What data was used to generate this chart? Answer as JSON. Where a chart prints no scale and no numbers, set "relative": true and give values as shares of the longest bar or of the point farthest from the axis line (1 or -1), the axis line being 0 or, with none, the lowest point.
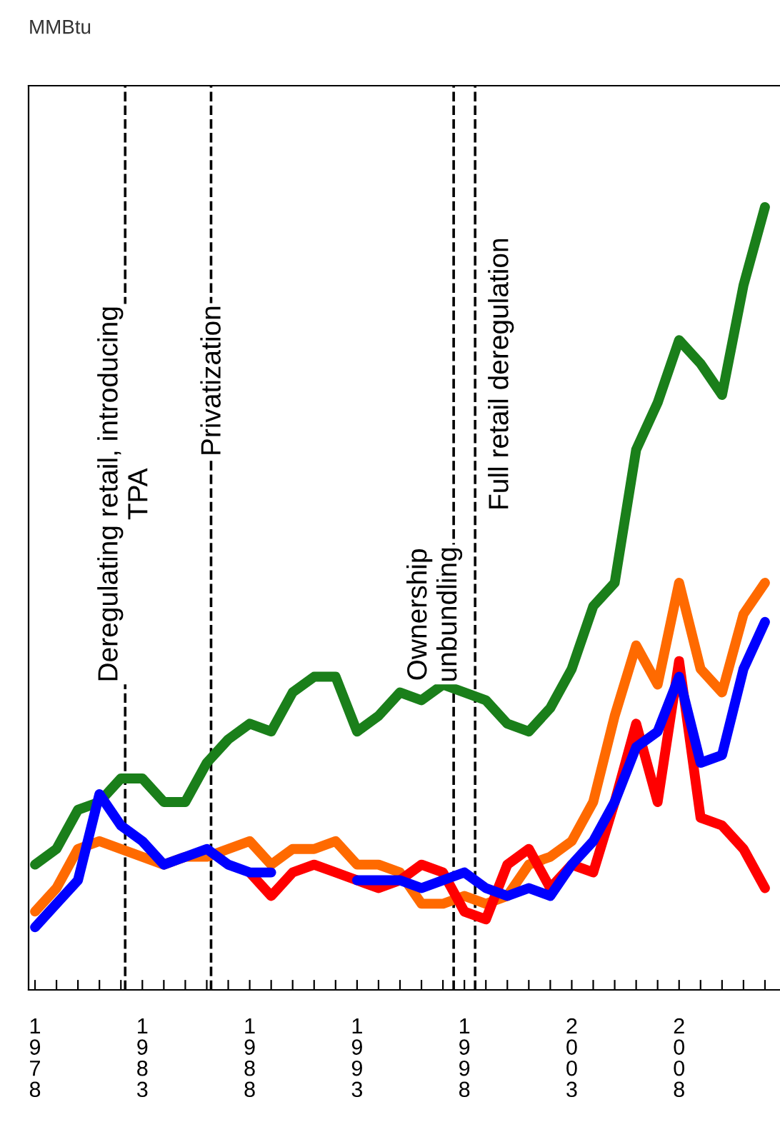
{
  "chart_data": {
    "type": "line",
    "relative": true,
    "annotations": [
      "MMBtu"
    ],
    "grid": false,
    "legend": false,
    "marker": "none",
    "line_style": "solid",
    "x": [
      1978,
      1979,
      1980,
      1981,
      1982,
      1983,
      1984,
      1985,
      1986,
      1987,
      1988,
      1989,
      1990,
      1991,
      1992,
      1993,
      1994,
      1995,
      1996,
      1997,
      1998,
      1999,
      2000,
      2001,
      2002,
      2003,
      2004,
      2005,
      2006,
      2007,
      2008,
      2009,
      2010,
      2011,
      2012
    ],
    "xlim": [
      1977.7,
      2012.7
    ],
    "xticks": [
      {
        "value": 1978,
        "label": "1978"
      },
      {
        "value": 1979,
        "label": null
      },
      {
        "value": 1980,
        "label": null
      },
      {
        "value": 1981,
        "label": null
      },
      {
        "value": 1982,
        "label": null
      },
      {
        "value": 1983,
        "label": "1983"
      },
      {
        "value": 1984,
        "label": null
      },
      {
        "value": 1985,
        "label": null
      },
      {
        "value": 1986,
        "label": null
      },
      {
        "value": 1987,
        "label": null
      },
      {
        "value": 1988,
        "label": "1988"
      },
      {
        "value": 1989,
        "label": null
      },
      {
        "value": 1990,
        "label": null
      },
      {
        "value": 1991,
        "label": null
      },
      {
        "value": 1992,
        "label": null
      },
      {
        "value": 1993,
        "label": "1993"
      },
      {
        "value": 1994,
        "label": null
      },
      {
        "value": 1995,
        "label": null
      },
      {
        "value": 1996,
        "label": null
      },
      {
        "value": 1997,
        "label": null
      },
      {
        "value": 1998,
        "label": "1998"
      },
      {
        "value": 1999,
        "label": null
      },
      {
        "value": 2000,
        "label": null
      },
      {
        "value": 2001,
        "label": null
      },
      {
        "value": 2002,
        "label": null
      },
      {
        "value": 2003,
        "label": "2003"
      },
      {
        "value": 2004,
        "label": null
      },
      {
        "value": 2005,
        "label": null
      },
      {
        "value": 2006,
        "label": null
      },
      {
        "value": 2007,
        "label": null
      },
      {
        "value": 2008,
        "label": "2008"
      },
      {
        "value": 2009,
        "label": null
      },
      {
        "value": 2010,
        "label": null
      },
      {
        "value": 2011,
        "label": null
      },
      {
        "value": 2012,
        "label": null
      }
    ],
    "series": [
      {
        "color": "#1a7f1a",
        "values": [
          0.16,
          0.18,
          0.23,
          0.24,
          0.27,
          0.27,
          0.24,
          0.24,
          0.29,
          0.32,
          0.34,
          0.33,
          0.38,
          0.4,
          0.4,
          0.33,
          0.35,
          0.38,
          0.37,
          0.39,
          0.38,
          0.37,
          0.34,
          0.33,
          0.36,
          0.41,
          0.49,
          0.52,
          0.69,
          0.75,
          0.83,
          0.8,
          0.76,
          0.9,
          1.0
        ]
      },
      {
        "color": "#ff6a00",
        "values": [
          0.1,
          0.13,
          0.18,
          0.19,
          0.18,
          0.17,
          0.16,
          0.17,
          0.17,
          0.18,
          0.19,
          0.16,
          0.18,
          0.18,
          0.19,
          0.16,
          0.16,
          0.15,
          0.11,
          0.11,
          0.12,
          0.11,
          0.12,
          0.16,
          0.17,
          0.19,
          0.24,
          0.35,
          0.44,
          0.39,
          0.52,
          0.41,
          0.38,
          0.48,
          0.52
        ]
      },
      {
        "color": "#ff0000",
        "values": [
          null,
          null,
          null,
          null,
          null,
          null,
          null,
          null,
          null,
          null,
          0.15,
          0.12,
          0.15,
          0.16,
          0.15,
          0.14,
          0.13,
          0.14,
          0.16,
          0.15,
          0.1,
          0.09,
          0.16,
          0.18,
          0.13,
          0.16,
          0.15,
          0.24,
          0.34,
          0.24,
          0.42,
          0.22,
          0.21,
          0.18,
          0.13
        ]
      },
      {
        "color": "#0000ff",
        "values": [
          0.08,
          0.11,
          0.14,
          0.25,
          0.21,
          0.19,
          0.16,
          0.17,
          0.18,
          0.16,
          0.15,
          0.15,
          null,
          null,
          null,
          0.14,
          0.14,
          0.14,
          0.13,
          0.14,
          0.15,
          0.13,
          0.12,
          0.13,
          0.12,
          0.16,
          0.19,
          0.24,
          0.31,
          0.33,
          0.4,
          0.29,
          0.3,
          0.41,
          0.47
        ]
      }
    ],
    "ref_lines": [
      {
        "axis": "x",
        "value": 1982.2,
        "label": "Deregulating retail, introducing\nTPA",
        "color": "#000000",
        "line_style": "dashed"
      },
      {
        "axis": "x",
        "value": 1986.2,
        "label": "Privatization",
        "color": "#000000",
        "line_style": "dashed"
      },
      {
        "axis": "x",
        "value": 1997.5,
        "label": "Ownership\nunbundling",
        "color": "#000000",
        "line_style": "dashed"
      },
      {
        "axis": "x",
        "value": 1998.5,
        "label": "Full retail deregulation",
        "color": "#000000",
        "line_style": "dashed"
      }
    ]
  }
}
